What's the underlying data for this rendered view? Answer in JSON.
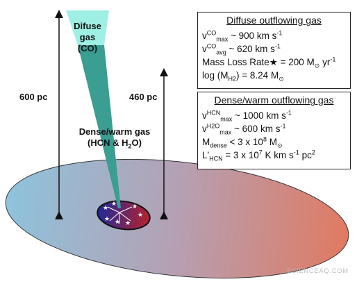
{
  "labels": {
    "diffuse": [
      "Difuse gas",
      "(CO)"
    ],
    "dense": [
      "Dense/warm gas",
      [
        "(HCN & H",
        {
          "sub": "2"
        },
        "O)"
      ]
    ],
    "size_outer": "600 pc",
    "size_inner": "460 pc"
  },
  "boxes": [
    {
      "title": "Diffuse outflowing gas",
      "lines": [
        [
          "v",
          {
            "sup": "CO"
          },
          {
            "sub": "max"
          },
          " ~ 900 km s",
          {
            "sup": "-1"
          }
        ],
        [
          "v",
          {
            "sup": "CO"
          },
          {
            "sub": "avg"
          },
          " ~ 620 km s",
          {
            "sup": "-1"
          }
        ],
        [
          "Mass Loss Rate★ = 200 M",
          {
            "sub": "⊙"
          },
          " yr",
          {
            "sup": "-1"
          }
        ],
        [
          "log (M",
          {
            "sub": "H2"
          },
          ") = 8.24 M",
          {
            "sub": "⊙"
          }
        ]
      ]
    },
    {
      "title": "Dense/warm outflowing gas",
      "lines": [
        [
          "v",
          {
            "sup": "HCN"
          },
          {
            "sub": "max"
          },
          " ~ 1000 km s",
          {
            "sup": "-1"
          }
        ],
        [
          "v",
          {
            "sup": "H2O"
          },
          {
            "sub": "max"
          },
          " ~ 600 km s",
          {
            "sup": "-1"
          }
        ],
        [
          "M",
          {
            "sub": "dense"
          },
          " < 3 x 10",
          {
            "sup": "8"
          },
          " M",
          {
            "sub": "⊙"
          }
        ],
        [
          "L'",
          {
            "sub": "HCN"
          },
          " = 3 x 10",
          {
            "sup": "7"
          },
          " K km s",
          {
            "sup": "-1"
          },
          " pc",
          {
            "sup": "2"
          }
        ]
      ]
    }
  ],
  "watermark": "SCIENCEAQ.COM"
}
